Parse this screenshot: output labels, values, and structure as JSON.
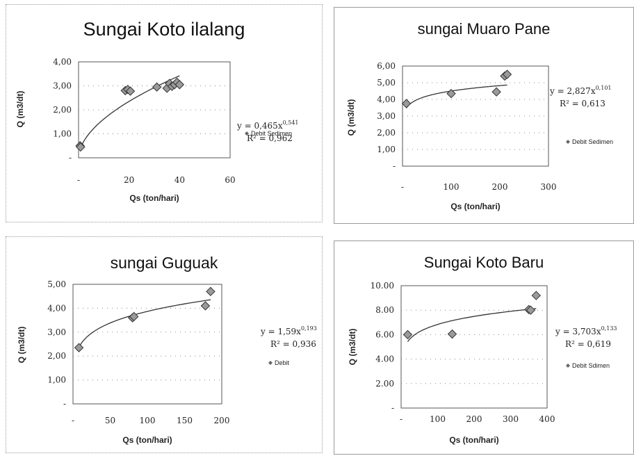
{
  "chart_data": [
    {
      "type": "scatter",
      "title": "Sungai Koto ilalang",
      "xlabel": "Qs (ton/hari)",
      "ylabel": "Q (m3/dt)",
      "xlim": [
        0,
        60
      ],
      "ylim": [
        0,
        4
      ],
      "xticks": [
        "-",
        "20",
        "40",
        "60"
      ],
      "yticks": [
        "-",
        "1,00",
        "2,00",
        "3,00",
        "4,00"
      ],
      "equation": "y = 0,465x",
      "exponent": "0,541",
      "r2": "R² = 0,962",
      "legend": "Debit Sedimen",
      "fit": {
        "a": 0.465,
        "b": 0.541
      },
      "points": [
        [
          0.6,
          0.5
        ],
        [
          0.8,
          0.45
        ],
        [
          18.5,
          2.8
        ],
        [
          19.5,
          2.85
        ],
        [
          20.5,
          2.78
        ],
        [
          31,
          2.95
        ],
        [
          35,
          2.9
        ],
        [
          36,
          3.1
        ],
        [
          37,
          2.98
        ],
        [
          38,
          3.05
        ],
        [
          39,
          3.15
        ],
        [
          40,
          3.05
        ]
      ]
    },
    {
      "type": "scatter",
      "title": "sungai Muaro Pane",
      "xlabel": "Qs (ton/hari)",
      "ylabel": "Q (m3/dt)",
      "xlim": [
        0,
        300
      ],
      "ylim": [
        0,
        6
      ],
      "xticks": [
        "-",
        "100",
        "200",
        "300"
      ],
      "yticks": [
        "-",
        "1,00",
        "2,00",
        "3,00",
        "4,00",
        "5,00",
        "6,00"
      ],
      "equation": "y = 2,827x",
      "exponent": "0,101",
      "r2": "R² = 0,613",
      "legend": "Debit Sedimen",
      "fit": {
        "a": 2.827,
        "b": 0.101
      },
      "points": [
        [
          8,
          3.75
        ],
        [
          100,
          4.35
        ],
        [
          193,
          4.45
        ],
        [
          210,
          5.4
        ],
        [
          215,
          5.5
        ]
      ]
    },
    {
      "type": "scatter",
      "title": "sungai Guguak",
      "xlabel": "Qs (ton/hari)",
      "ylabel": "Q (m3/dt)",
      "xlim": [
        0,
        200
      ],
      "ylim": [
        0,
        5
      ],
      "xticks": [
        "-",
        "50",
        "100",
        "150",
        "200"
      ],
      "yticks": [
        "-",
        "1,00",
        "2,00",
        "3,00",
        "4,00",
        "5,00"
      ],
      "equation": "y = 1,59x",
      "exponent": "0,193",
      "r2": "R² = 0,936",
      "legend": "Debit",
      "fit": {
        "a": 1.59,
        "b": 0.193
      },
      "points": [
        [
          8,
          2.35
        ],
        [
          80,
          3.6
        ],
        [
          82,
          3.65
        ],
        [
          178,
          4.1
        ],
        [
          185,
          4.7
        ]
      ]
    },
    {
      "type": "scatter",
      "title": "Sungai Koto Baru",
      "xlabel": "Qs (ton/hari)",
      "ylabel": "Q (m3/dt)",
      "xlim": [
        0,
        400
      ],
      "ylim": [
        0,
        10
      ],
      "xticks": [
        "-",
        "100",
        "200",
        "300",
        "400"
      ],
      "yticks": [
        "-",
        "2.00",
        "4.00",
        "6.00",
        "8.00",
        "10.00"
      ],
      "equation": "y = 3,703x",
      "exponent": "0,133",
      "r2": "R² = 0,619",
      "legend": "Debit Sdimen",
      "fit": {
        "a": 3.703,
        "b": 0.133
      },
      "points": [
        [
          18,
          6.0
        ],
        [
          140,
          6.05
        ],
        [
          350,
          8.05
        ],
        [
          355,
          8.0
        ],
        [
          370,
          9.2
        ]
      ]
    }
  ]
}
